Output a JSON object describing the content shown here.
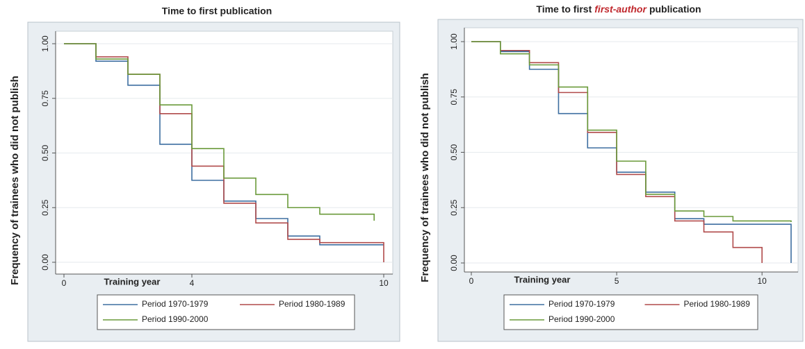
{
  "chart_data": [
    {
      "type": "step",
      "title": "Time to first publication",
      "ylabel": "Frequency of trainees who did not publish",
      "xlabel": "Training year",
      "xlim": [
        0,
        10
      ],
      "xticks": [
        0,
        4,
        10
      ],
      "ylim": [
        0,
        1
      ],
      "yticks": [
        {
          "value": 0,
          "label": "0.00"
        },
        {
          "value": 0.25,
          "label": "0.25"
        },
        {
          "value": 0.5,
          "label": "0.50"
        },
        {
          "value": 0.75,
          "label": "0.75"
        },
        {
          "value": 1,
          "label": "1.00"
        }
      ],
      "grid": true,
      "series": [
        {
          "name": "Period 1970-1979",
          "color": "#3d6ea0",
          "x": [
            0,
            1,
            2,
            3,
            4,
            5,
            6,
            7,
            8,
            10
          ],
          "values": [
            1,
            0.92,
            0.81,
            0.54,
            0.375,
            0.28,
            0.2,
            0.12,
            0.08,
            0.08
          ]
        },
        {
          "name": "Period 1980-1989",
          "color": "#b04a4a",
          "x": [
            0,
            1,
            2,
            3,
            4,
            5,
            6,
            7,
            8,
            10
          ],
          "values": [
            1,
            0.94,
            0.86,
            0.68,
            0.44,
            0.27,
            0.18,
            0.105,
            0.09,
            0
          ]
        },
        {
          "name": "Period 1990-2000",
          "color": "#6a9a3a",
          "x": [
            0,
            1,
            2,
            3,
            4,
            5,
            6,
            7,
            8,
            9.7
          ],
          "values": [
            1,
            0.93,
            0.86,
            0.72,
            0.52,
            0.385,
            0.31,
            0.25,
            0.22,
            0.19
          ]
        }
      ]
    },
    {
      "type": "step",
      "title": "Time to first",
      "title_emphasis": "first-author",
      "title_suffix": "publication",
      "ylabel": "Frequency of trainees who did not publish",
      "xlabel": "Training year",
      "xlim": [
        0,
        11
      ],
      "xticks": [
        0,
        5,
        10
      ],
      "ylim": [
        0,
        1
      ],
      "yticks": [
        {
          "value": 0,
          "label": "0.00"
        },
        {
          "value": 0.25,
          "label": "0.25"
        },
        {
          "value": 0.5,
          "label": "0.50"
        },
        {
          "value": 0.75,
          "label": "0.75"
        },
        {
          "value": 1,
          "label": "1.00"
        }
      ],
      "grid": true,
      "series": [
        {
          "name": "Period 1970-1979",
          "color": "#3d6ea0",
          "x": [
            0,
            1,
            2,
            3,
            4,
            5,
            6,
            7,
            8,
            11
          ],
          "values": [
            1,
            0.955,
            0.875,
            0.675,
            0.52,
            0.41,
            0.32,
            0.2,
            0.175,
            0
          ]
        },
        {
          "name": "Period 1980-1989",
          "color": "#b04a4a",
          "x": [
            0,
            1,
            2,
            3,
            4,
            5,
            6,
            7,
            8,
            9,
            10
          ],
          "values": [
            1,
            0.96,
            0.905,
            0.77,
            0.59,
            0.4,
            0.3,
            0.19,
            0.14,
            0.07,
            0
          ]
        },
        {
          "name": "Period 1990-2000",
          "color": "#6a9a3a",
          "x": [
            0,
            1,
            2,
            3,
            4,
            5,
            6,
            7,
            8,
            9,
            11
          ],
          "values": [
            1,
            0.945,
            0.895,
            0.795,
            0.6,
            0.46,
            0.31,
            0.235,
            0.21,
            0.19,
            0.185
          ]
        }
      ]
    }
  ]
}
